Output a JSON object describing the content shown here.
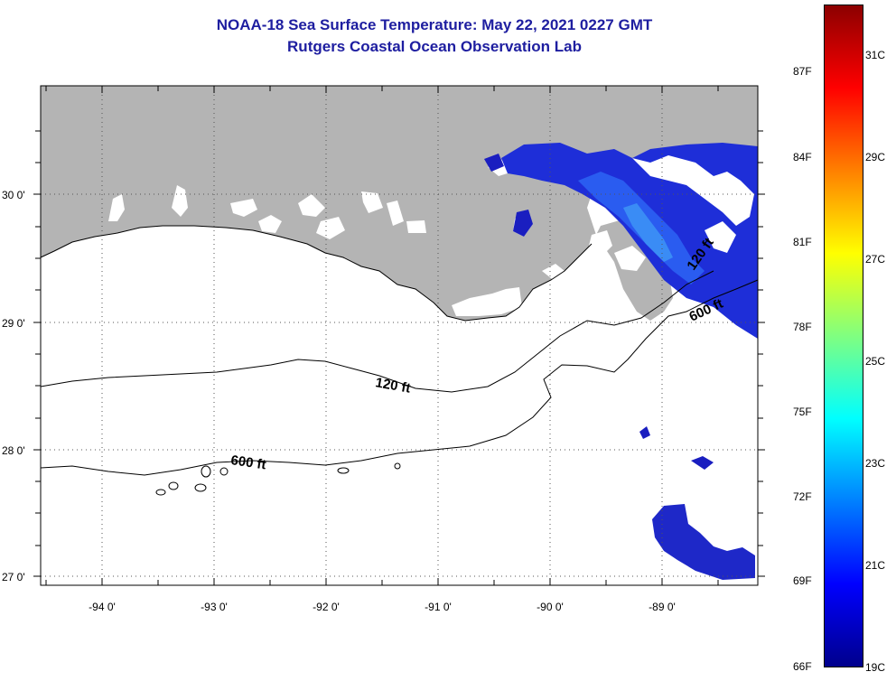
{
  "header": {
    "title": "NOAA-18 Sea Surface Temperature:  May 22, 2021 0227 GMT",
    "subtitle": "Rutgers Coastal Ocean Observation Lab"
  },
  "axes": {
    "longitude_labels": [
      "-94 0'",
      "-93 0'",
      "-92 0'",
      "-91 0'",
      "-90 0'",
      "-89 0'"
    ],
    "latitude_labels": [
      "30 0'",
      "29 0'",
      "28 0'",
      "27 0'"
    ]
  },
  "map_data": {
    "lon_range": [
      -94.55,
      -88.0
    ],
    "lat_range": [
      26.95,
      30.85
    ],
    "gridlines": "dotted",
    "land_color": "#b4b4b4",
    "no_data_color": "#ffffff",
    "contours": [
      {
        "label": "120 ft"
      },
      {
        "label": "600 ft"
      }
    ]
  },
  "colorbar": {
    "fahrenheit_labels": [
      "87F",
      "84F",
      "81F",
      "78F",
      "75F",
      "72F",
      "69F",
      "66F"
    ],
    "celsius_labels": [
      "31C",
      "29C",
      "27C",
      "25C",
      "23C",
      "21C",
      "19C"
    ],
    "colors": [
      "#00008c",
      "#0000ff",
      "#0080ff",
      "#00ffff",
      "#80ff80",
      "#ffff00",
      "#ff8000",
      "#ff0000",
      "#8c0000"
    ]
  }
}
